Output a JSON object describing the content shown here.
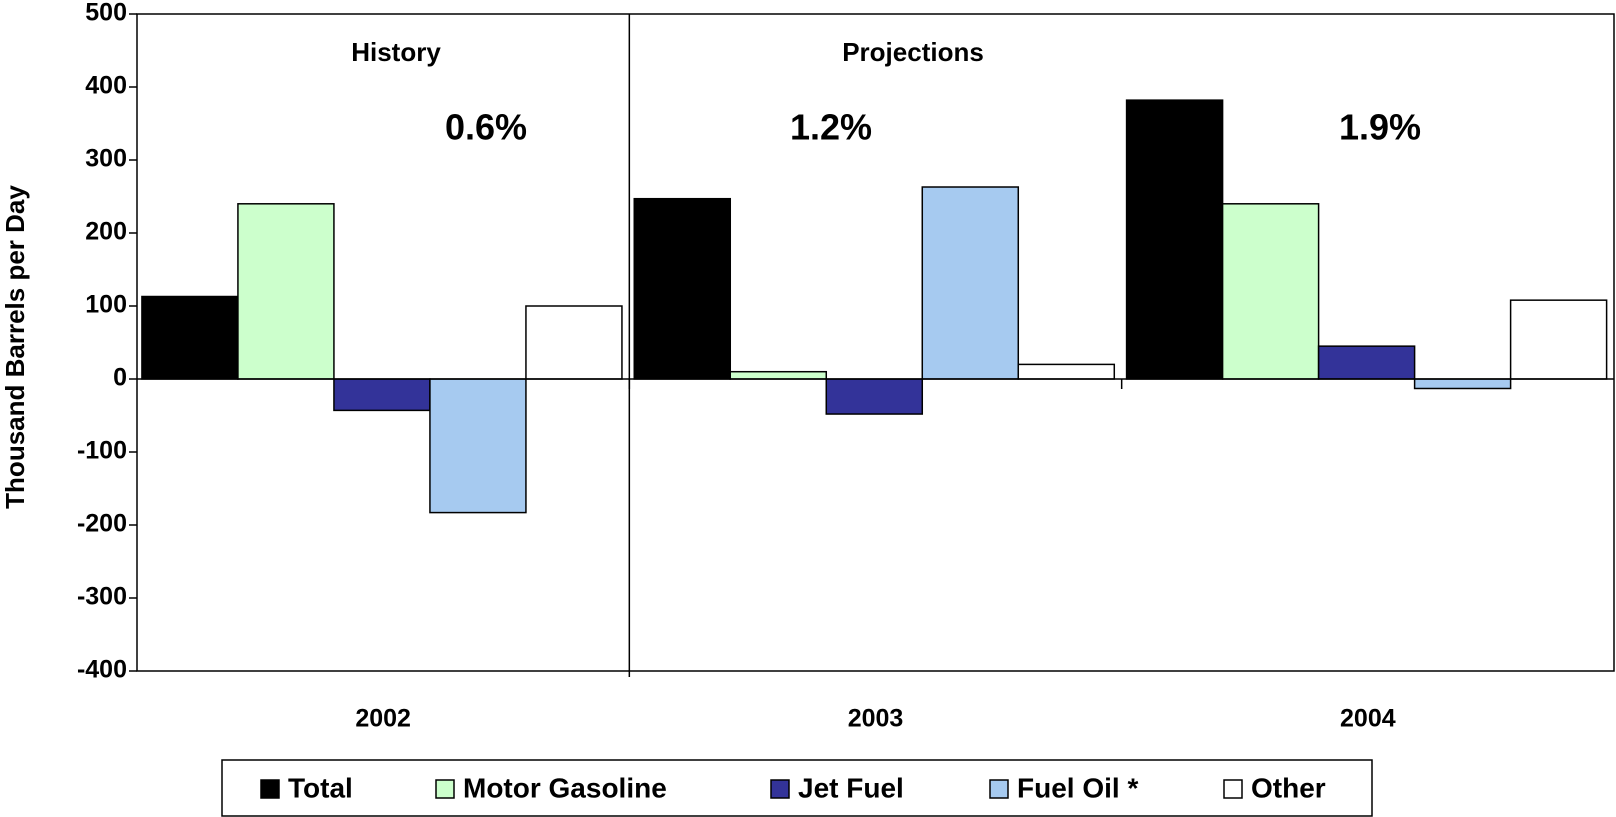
{
  "chart_data": {
    "type": "bar",
    "y_label": "Thousand Barrels per Day",
    "categories": [
      "2002",
      "2003",
      "2004"
    ],
    "series": [
      {
        "name": "Total",
        "color": "#000000",
        "values": [
          113,
          247,
          382
        ]
      },
      {
        "name": "Motor Gasoline",
        "color": "#ccffcc",
        "values": [
          240,
          10,
          240
        ]
      },
      {
        "name": "Jet Fuel",
        "color": "#333399",
        "values": [
          -43,
          -48,
          45
        ]
      },
      {
        "name": "Fuel Oil *",
        "color": "#a6caf0",
        "values": [
          -183,
          263,
          -13
        ]
      },
      {
        "name": "Other",
        "color": "#ffffff",
        "values": [
          100,
          20,
          108
        ]
      }
    ],
    "annotations": [
      "History",
      "Projections",
      "0.6%",
      "1.2%",
      "1.9%"
    ],
    "ylim": [
      -400,
      500
    ],
    "yticks": [
      -400,
      -300,
      -200,
      -100,
      0,
      100,
      200,
      300,
      400,
      500
    ],
    "grid": false,
    "legend": "bottom"
  }
}
